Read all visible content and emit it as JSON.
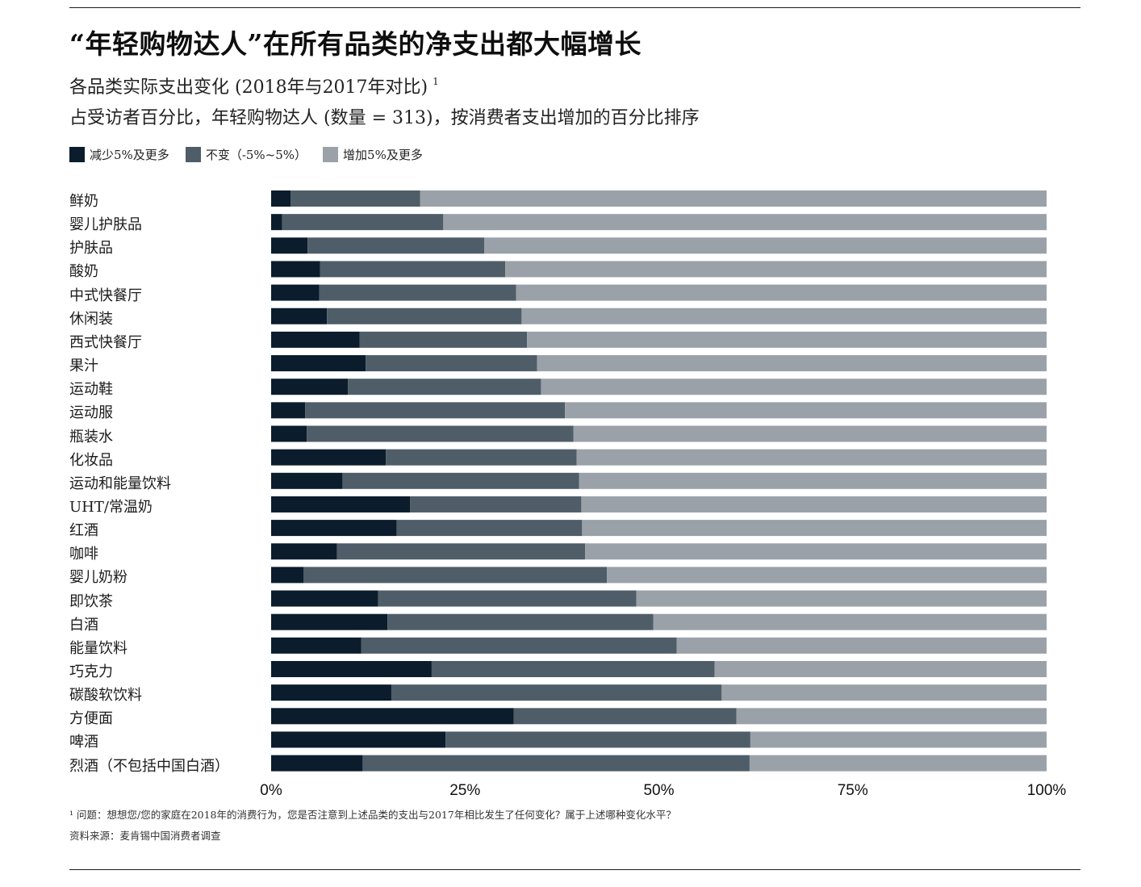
{
  "header": {
    "title": "“年轻购物达人”在所有品类的净支出都大幅增长",
    "subtitle_line1": "各品类实际支出变化 (2018年与2017年对比)",
    "subtitle_sup": "1",
    "subtitle_line2": "占受访者百分比，年轻购物达人 (数量 = 313)，按消费者支出增加的百分比排序"
  },
  "legend": [
    {
      "label": "减少5%及更多",
      "color": "#0b1c2c"
    },
    {
      "label": "不变（-5%~5%）",
      "color": "#4f5d68"
    },
    {
      "label": "增加5%及更多",
      "color": "#9aa1a8"
    }
  ],
  "footnotes": {
    "question": "¹ 问题：想想您/您的家庭在2018年的消费行为，您是否注意到上述品类的支出与2017年相比发生了任何变化？属于上述哪种变化水平？",
    "source": "资料来源：麦肯锡中国消费者调查"
  },
  "chart_data": {
    "type": "bar",
    "orientation": "horizontal",
    "stacked": true,
    "title": "“年轻购物达人”在所有品类的净支出都大幅增长",
    "xlim": [
      0,
      100
    ],
    "x_ticks": [
      "0%",
      "25%",
      "50%",
      "75%",
      "100%"
    ],
    "x_tick_values": [
      0,
      25,
      50,
      75,
      100
    ],
    "grid": false,
    "legend_position": "top-left",
    "categories": [
      "鲜奶",
      "婴儿护肤品",
      "护肤品",
      "酸奶",
      "中式快餐厅",
      "休闲装",
      "西式快餐厅",
      "果汁",
      "运动鞋",
      "运动服",
      "瓶装水",
      "化妆品",
      "运动和能量饮料",
      "UHT/常温奶",
      "红酒",
      "咖啡",
      "婴儿奶粉",
      "即饮茶",
      "白酒",
      "能量饮料",
      "巧克力",
      "碳酸软饮料",
      "方便面",
      "啤酒",
      "烈酒（不包括中国白酒）"
    ],
    "series": [
      {
        "name": "减少5%及更多",
        "color": "#0b1c2c",
        "values": [
          2.5,
          1.4,
          4.7,
          6.3,
          6.2,
          7.2,
          11.4,
          12.2,
          9.9,
          4.4,
          4.6,
          14.8,
          9.2,
          17.9,
          16.2,
          8.5,
          4.2,
          13.8,
          15.0,
          11.6,
          20.7,
          15.5,
          31.3,
          22.5,
          11.8
        ]
      },
      {
        "name": "不变（-5%~5%）",
        "color": "#4f5d68",
        "values": [
          16.7,
          20.8,
          22.8,
          23.9,
          25.4,
          25.1,
          21.6,
          22.1,
          24.9,
          33.5,
          34.4,
          24.6,
          30.5,
          22.1,
          23.9,
          32.0,
          39.1,
          33.3,
          34.3,
          40.7,
          36.5,
          42.6,
          28.7,
          39.3,
          49.9
        ]
      },
      {
        "name": "增加5%及更多",
        "color": "#9aa1a8",
        "values": [
          80.8,
          77.8,
          72.5,
          69.8,
          68.4,
          67.7,
          67.0,
          65.7,
          65.2,
          62.1,
          61.0,
          60.6,
          60.3,
          60.0,
          59.9,
          59.5,
          56.7,
          52.9,
          50.7,
          47.7,
          42.8,
          41.9,
          40.0,
          38.2,
          38.3
        ]
      }
    ]
  }
}
